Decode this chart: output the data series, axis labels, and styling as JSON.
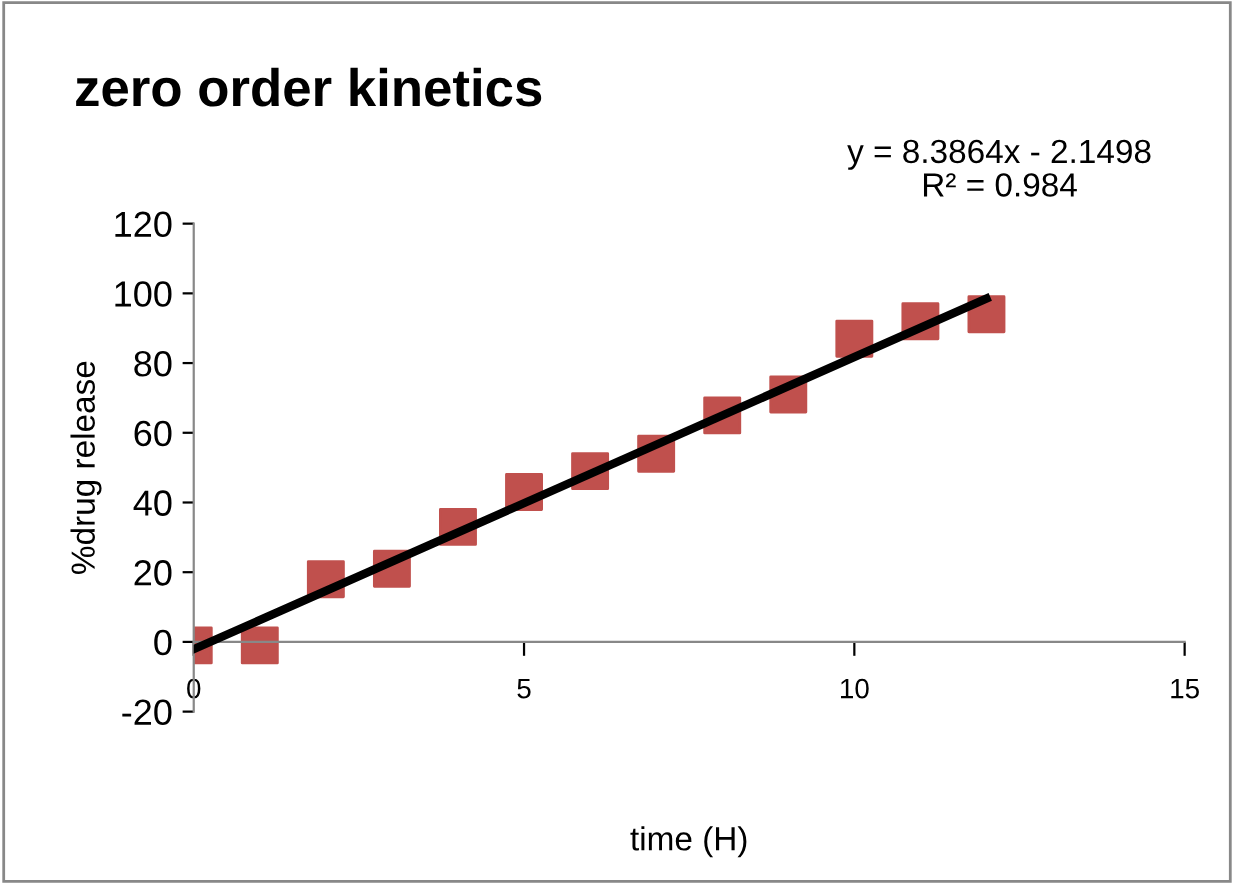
{
  "chart_data": {
    "type": "scatter",
    "title": "zero order kinetics",
    "xlabel": "time (H)",
    "ylabel": "%drug release",
    "x": [
      0,
      1,
      2,
      3,
      4,
      5,
      6,
      7,
      8,
      9,
      10,
      11,
      12
    ],
    "series": [
      {
        "name": null,
        "color": "#c0504d",
        "marker": "square",
        "values": [
          -1,
          -1,
          18,
          21,
          33,
          43,
          49,
          54,
          65,
          71,
          87,
          92,
          94
        ]
      },
      {
        "name": null,
        "type": "line",
        "color": "#000000",
        "x": [
          0,
          12
        ],
        "values": [
          -2.1,
          98.5
        ],
        "marker": "none"
      }
    ],
    "annotations": [
      "y = 8.3864x - 2.1498\nR² = 0.984"
    ],
    "xlim": [
      0,
      15
    ],
    "xticks": [
      0,
      5,
      10,
      15
    ],
    "ylim": [
      -20,
      120
    ],
    "yticks": [
      -20,
      0,
      20,
      40,
      60,
      80,
      100,
      120
    ],
    "grid": false,
    "legend": false
  }
}
